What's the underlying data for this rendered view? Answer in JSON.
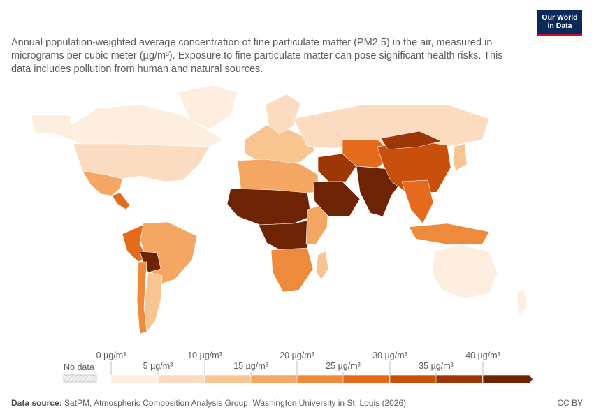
{
  "subtitle": "Annual population-weighted average concentration of fine particulate matter (PM2.5) in the air, measured in micrograms per cubic meter (µg/m³). Exposure to fine particulate matter can pose significant health risks. This data includes pollution from human and natural sources.",
  "logo": {
    "line1": "Our World",
    "line2": "in Data"
  },
  "legend": {
    "no_data_label": "No data",
    "upper_ticks": [
      "0 µg/m³",
      "10 µg/m³",
      "20 µg/m³",
      "30 µg/m³",
      "40 µg/m³"
    ],
    "lower_ticks": [
      "5 µg/m³",
      "15 µg/m³",
      "25 µg/m³",
      "35 µg/m³"
    ],
    "bins": [
      {
        "min": 0,
        "max": 5,
        "color": "#fdeee0"
      },
      {
        "min": 5,
        "max": 10,
        "color": "#fbdcc0"
      },
      {
        "min": 10,
        "max": 15,
        "color": "#f8c590"
      },
      {
        "min": 15,
        "max": 20,
        "color": "#f4a663"
      },
      {
        "min": 20,
        "max": 25,
        "color": "#ee8a3c"
      },
      {
        "min": 25,
        "max": 30,
        "color": "#e46a1c"
      },
      {
        "min": 30,
        "max": 35,
        "color": "#c8500c"
      },
      {
        "min": 35,
        "max": 40,
        "color": "#9e3706"
      },
      {
        "min": 40,
        "max": null,
        "color": "#6e2404"
      }
    ]
  },
  "footer": {
    "source_label": "Data source:",
    "source_text": "SatPM, Atmospheric Composition Analysis Group, Washington University in St. Louis (2026)",
    "license": "CC BY"
  },
  "regions": [
    {
      "name": "Canada",
      "bin": 0
    },
    {
      "name": "Alaska",
      "bin": 0
    },
    {
      "name": "Greenland",
      "bin": 0
    },
    {
      "name": "United States",
      "bin": 1
    },
    {
      "name": "Mexico",
      "bin": 3
    },
    {
      "name": "Central America",
      "bin": 5
    },
    {
      "name": "Brazil",
      "bin": 3
    },
    {
      "name": "Peru",
      "bin": 5
    },
    {
      "name": "Bolivia",
      "bin": 8
    },
    {
      "name": "Argentina",
      "bin": 2
    },
    {
      "name": "Chile",
      "bin": 4
    },
    {
      "name": "Europe",
      "bin": 2
    },
    {
      "name": "Scandinavia",
      "bin": 1
    },
    {
      "name": "Russia",
      "bin": 1
    },
    {
      "name": "North Africa",
      "bin": 3
    },
    {
      "name": "Sahel",
      "bin": 8
    },
    {
      "name": "Central Africa",
      "bin": 8
    },
    {
      "name": "Southern Africa",
      "bin": 4
    },
    {
      "name": "East Africa",
      "bin": 3
    },
    {
      "name": "Madagascar",
      "bin": 2
    },
    {
      "name": "Middle East",
      "bin": 7
    },
    {
      "name": "Arabian Peninsula",
      "bin": 8
    },
    {
      "name": "Central Asia",
      "bin": 5
    },
    {
      "name": "South Asia",
      "bin": 8
    },
    {
      "name": "China",
      "bin": 6
    },
    {
      "name": "Mongolia",
      "bin": 7
    },
    {
      "name": "Southeast Asia",
      "bin": 5
    },
    {
      "name": "Indonesia",
      "bin": 4
    },
    {
      "name": "Japan",
      "bin": 2
    },
    {
      "name": "Australia",
      "bin": 0
    },
    {
      "name": "New Zealand",
      "bin": 0
    }
  ]
}
